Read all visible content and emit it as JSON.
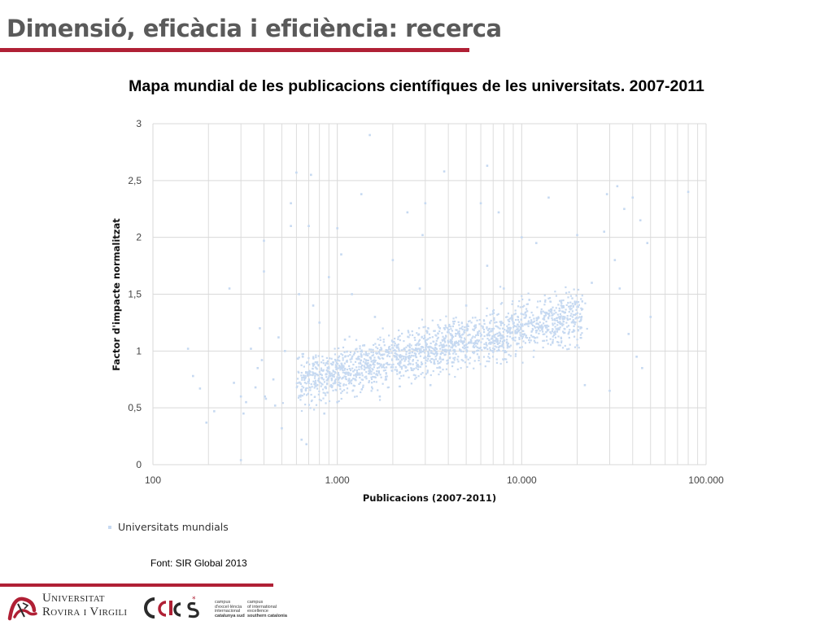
{
  "slide": {
    "title": "Dimensió, eficàcia i eficiència: recerca",
    "source": "Font: SIR Global 2013"
  },
  "colors": {
    "accent": "#b02035",
    "points": "#c6d9f1",
    "grid": "#d9d9d9",
    "title_text": "#5a5a5a"
  },
  "footer": {
    "university_line1": "Universitat",
    "university_line2": "Rovira i Virgili",
    "cei_mark": "ce i cs",
    "cei_left": [
      "campus",
      "d'excel·lència",
      "internacional",
      "catalunya sud"
    ],
    "cei_right": [
      "campus",
      "of international",
      "excellence",
      "southern catalonia"
    ]
  },
  "chart_data": {
    "type": "scatter",
    "title": "Mapa mundial de les publicacions científiques de les universitats. 2007-2011",
    "xlabel": "Publicacions  (2007-2011)",
    "ylabel": "Factor d'impacte normalitzat",
    "x_scale": "log",
    "xlim": [
      100,
      100000
    ],
    "ylim": [
      0,
      3
    ],
    "x_ticks": [
      100,
      1000,
      10000,
      100000
    ],
    "x_tick_labels": [
      "100",
      "1.000",
      "10.000",
      "100.000"
    ],
    "y_ticks": [
      0,
      0.5,
      1,
      1.5,
      2,
      2.5,
      3
    ],
    "y_tick_labels": [
      "0",
      "0,5",
      "1",
      "1,5",
      "2",
      "2,5",
      "3"
    ],
    "grid": true,
    "legend_position": "bottom-left",
    "series": [
      {
        "name": "Universitats mundials",
        "x": [
          155,
          165,
          180,
          195,
          215,
          260,
          275,
          300,
          300,
          310,
          320,
          340,
          360,
          370,
          380,
          390,
          400,
          400,
          405,
          410,
          450,
          460,
          480,
          500,
          520,
          560,
          560,
          600,
          620,
          640,
          640,
          650,
          680,
          700,
          700,
          720,
          740,
          780,
          800,
          850,
          900,
          950,
          1000,
          1000,
          1050,
          1100,
          1200,
          1250,
          1350,
          1400,
          1500,
          1600,
          1700,
          2000,
          2200,
          2400,
          2800,
          2900,
          3000,
          3200,
          3600,
          3800,
          4200,
          5000,
          6000,
          6500,
          6500,
          7000,
          7500,
          8000,
          9000,
          10000,
          11000,
          12000,
          14000,
          16000,
          20000,
          20000,
          22000,
          24000,
          28000,
          29000,
          30000,
          32000,
          33000,
          34000,
          36000,
          38000,
          40000,
          42000,
          44000,
          45000,
          48000,
          50000,
          80000
        ],
        "y": [
          1.02,
          0.78,
          0.67,
          0.37,
          0.47,
          1.55,
          0.72,
          0.04,
          0.6,
          0.45,
          0.55,
          1.02,
          0.68,
          0.85,
          1.2,
          0.92,
          1.97,
          1.7,
          0.6,
          0.58,
          0.75,
          0.52,
          1.12,
          0.32,
          1.0,
          2.1,
          2.3,
          2.57,
          1.5,
          0.65,
          0.22,
          0.95,
          0.18,
          2.1,
          0.8,
          2.55,
          1.4,
          0.7,
          1.25,
          0.45,
          1.65,
          0.9,
          2.08,
          0.55,
          1.85,
          1.1,
          1.5,
          0.75,
          2.38,
          1.05,
          2.9,
          1.3,
          0.6,
          1.8,
          0.95,
          2.22,
          1.55,
          2.02,
          2.3,
          0.7,
          1.2,
          2.58,
          0.9,
          1.4,
          2.3,
          1.75,
          2.63,
          1.0,
          2.22,
          1.55,
          1.1,
          2.0,
          1.45,
          1.95,
          2.35,
          1.3,
          2.02,
          1.05,
          0.7,
          1.6,
          2.05,
          2.38,
          0.65,
          1.8,
          2.45,
          1.55,
          2.25,
          1.15,
          2.35,
          0.95,
          2.15,
          0.85,
          1.95,
          1.3,
          2.4
        ]
      }
    ]
  }
}
